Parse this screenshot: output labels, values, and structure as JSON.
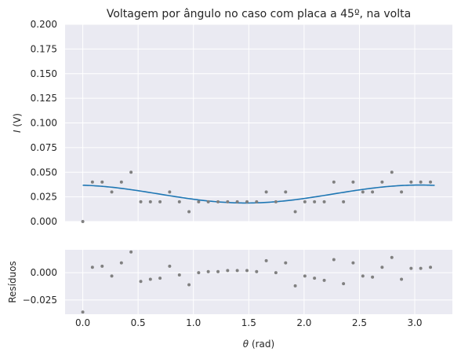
{
  "chart_data": [
    {
      "type": "scatter",
      "title": "Voltagem por ângulo no caso com placa a 45º, na volta",
      "xlabel": "",
      "ylabel": "I (V)",
      "ylabel_parts": [
        "I",
        " (V)"
      ],
      "xlim": [
        -0.16,
        3.34
      ],
      "ylim": [
        0,
        0.2
      ],
      "yticks": [
        "0.000",
        "0.025",
        "0.050",
        "0.075",
        "0.100",
        "0.125",
        "0.150",
        "0.175",
        "0.200"
      ],
      "ytick_values": [
        0,
        0.025,
        0.05,
        0.075,
        0.1,
        0.125,
        0.15,
        0.175,
        0.2
      ],
      "xtick_values": [
        0,
        0.5,
        1,
        1.5,
        2,
        2.5,
        3
      ],
      "grid": true,
      "series": [
        {
          "kind": "points",
          "color": "#808080",
          "x": [
            0.0,
            0.087,
            0.175,
            0.262,
            0.349,
            0.436,
            0.524,
            0.611,
            0.698,
            0.785,
            0.873,
            0.96,
            1.047,
            1.134,
            1.222,
            1.309,
            1.396,
            1.484,
            1.571,
            1.658,
            1.745,
            1.833,
            1.92,
            2.007,
            2.094,
            2.182,
            2.269,
            2.356,
            2.443,
            2.531,
            2.618,
            2.705,
            2.793,
            2.88,
            2.967,
            3.054,
            3.142
          ],
          "y": [
            0.0,
            0.04,
            0.04,
            0.03,
            0.04,
            0.05,
            0.02,
            0.02,
            0.02,
            0.03,
            0.02,
            0.01,
            0.02,
            0.02,
            0.02,
            0.02,
            0.02,
            0.02,
            0.02,
            0.03,
            0.02,
            0.03,
            0.01,
            0.02,
            0.02,
            0.02,
            0.04,
            0.02,
            0.04,
            0.03,
            0.03,
            0.04,
            0.05,
            0.03,
            0.04,
            0.04,
            0.04
          ]
        },
        {
          "kind": "fit",
          "color": "#1f77b4",
          "model": {
            "offset": 0.0279,
            "amplitude": 0.0091,
            "frequency": 2,
            "phase": 0.19
          },
          "x_range": [
            0.0,
            3.18
          ]
        }
      ]
    },
    {
      "type": "scatter",
      "title": "",
      "xlabel": "θ (rad)",
      "xlabel_parts": [
        "θ",
        " (rad)"
      ],
      "ylabel": "Resíduos",
      "xlim": [
        -0.16,
        3.34
      ],
      "ylim": [
        -0.038,
        0.021
      ],
      "xticks": [
        "0.0",
        "0.5",
        "1.0",
        "1.5",
        "2.0",
        "2.5",
        "3.0"
      ],
      "xtick_values": [
        0,
        0.5,
        1,
        1.5,
        2,
        2.5,
        3
      ],
      "yticks": [
        "−0.025",
        "0.000"
      ],
      "ytick_values": [
        -0.025,
        0
      ],
      "grid": true,
      "series": [
        {
          "kind": "points",
          "color": "#808080",
          "x": [
            0.0,
            0.087,
            0.175,
            0.262,
            0.349,
            0.436,
            0.524,
            0.611,
            0.698,
            0.785,
            0.873,
            0.96,
            1.047,
            1.134,
            1.222,
            1.309,
            1.396,
            1.484,
            1.571,
            1.658,
            1.745,
            1.833,
            1.92,
            2.007,
            2.094,
            2.182,
            2.269,
            2.356,
            2.443,
            2.531,
            2.618,
            2.705,
            2.793,
            2.88,
            2.967,
            3.054,
            3.142
          ],
          "y": [
            -0.036,
            0.005,
            0.006,
            -0.003,
            0.009,
            0.019,
            -0.008,
            -0.006,
            -0.005,
            0.006,
            -0.002,
            -0.011,
            0.0,
            0.001,
            0.001,
            0.002,
            0.002,
            0.002,
            0.001,
            0.011,
            0.0,
            0.009,
            -0.012,
            -0.003,
            -0.005,
            -0.007,
            0.012,
            -0.01,
            0.009,
            -0.003,
            -0.004,
            0.005,
            0.014,
            -0.006,
            0.004,
            0.004,
            0.005
          ]
        }
      ]
    }
  ],
  "colors": {
    "axes_background": "#eaeaf2",
    "grid": "#ffffff",
    "text": "#262626",
    "points": "#808080",
    "fit_line": "#1f77b4"
  }
}
